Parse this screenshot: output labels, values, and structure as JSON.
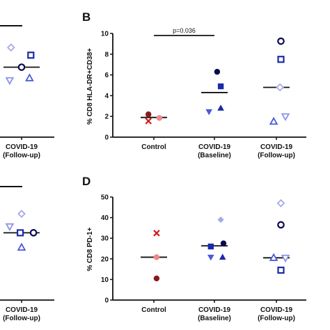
{
  "colors": {
    "dark_red": "#8b1a1a",
    "red": "#d01c1c",
    "pink": "#f08888",
    "navy": "#0a0a50",
    "blue": "#1a2aa8",
    "medium_blue": "#4a5ad8",
    "light_blue": "#8a94e6",
    "lavender": "#a6a9ea"
  },
  "chart_data": [
    {
      "panel": "left-top (partial)",
      "type": "scatter",
      "categories": [
        "COVID-19 (Follow-up)"
      ],
      "category_lines": [
        [
          "COVID-19",
          "(Follow-up)"
        ]
      ],
      "median_line": true,
      "points": [
        {
          "category": 0,
          "offset": -0.4,
          "y": 0.82,
          "marker": "diamond-open",
          "color": "lavender"
        },
        {
          "category": 0,
          "offset": 0.35,
          "y": 0.75,
          "marker": "square-open",
          "color": "blue"
        },
        {
          "category": 0,
          "offset": 0.0,
          "y": 0.64,
          "marker": "circle-open",
          "color": "navy"
        },
        {
          "category": 0,
          "offset": -0.45,
          "y": 0.52,
          "marker": "triangle-down-open",
          "color": "light_blue"
        },
        {
          "category": 0,
          "offset": 0.3,
          "y": 0.54,
          "marker": "triangle-up-open",
          "color": "medium_blue"
        }
      ]
    },
    {
      "panel": "B",
      "type": "scatter",
      "ylabel": "% CD8 HLA-DR+CD38+",
      "ylim": [
        0,
        10
      ],
      "yticks": [
        "0",
        "2",
        "4",
        "6",
        "8",
        "10"
      ],
      "categories": [
        "Control",
        "COVID-19 (Baseline)",
        "COVID-19 (Follow-up)"
      ],
      "category_lines": [
        [
          "Control"
        ],
        [
          "COVID-19",
          "(Baseline)"
        ],
        [
          "COVID-19",
          "(Follow-up)"
        ]
      ],
      "medians": [
        1.9,
        4.3,
        4.8
      ],
      "significance": {
        "from": 0,
        "to": 1,
        "label": "p=0.036",
        "y": 9.8
      },
      "points": [
        {
          "category": 0,
          "offset": -0.3,
          "y": 2.2,
          "marker": "circle-filled",
          "color": "dark_red"
        },
        {
          "category": 0,
          "offset": -0.3,
          "y": 1.55,
          "marker": "x",
          "color": "red"
        },
        {
          "category": 0,
          "offset": 0.3,
          "y": 1.85,
          "marker": "circle-filled",
          "color": "pink"
        },
        {
          "category": 1,
          "offset": 0.15,
          "y": 6.3,
          "marker": "circle-filled",
          "color": "navy"
        },
        {
          "category": 1,
          "offset": 0.35,
          "y": 4.9,
          "marker": "square-filled",
          "color": "blue"
        },
        {
          "category": 1,
          "offset": -0.3,
          "y": 2.45,
          "marker": "triangle-down-filled",
          "color": "medium_blue"
        },
        {
          "category": 1,
          "offset": 0.35,
          "y": 2.8,
          "marker": "triangle-up-filled",
          "color": "blue"
        },
        {
          "category": 2,
          "offset": 0.25,
          "y": 9.25,
          "marker": "circle-open",
          "color": "navy"
        },
        {
          "category": 2,
          "offset": 0.25,
          "y": 7.5,
          "marker": "square-open",
          "color": "blue"
        },
        {
          "category": 2,
          "offset": 0.2,
          "y": 4.8,
          "marker": "diamond-open",
          "color": "lavender"
        },
        {
          "category": 2,
          "offset": 0.5,
          "y": 2.0,
          "marker": "triangle-down-open",
          "color": "light_blue"
        },
        {
          "category": 2,
          "offset": -0.15,
          "y": 1.5,
          "marker": "triangle-up-open",
          "color": "medium_blue"
        }
      ]
    },
    {
      "panel": "left-bottom (partial)",
      "type": "scatter",
      "categories": [
        "COVID-19 (Follow-up)"
      ],
      "category_lines": [
        [
          "COVID-19",
          "(Follow-up)"
        ]
      ],
      "median_line": true,
      "points": [
        {
          "category": 0,
          "offset": 0.0,
          "y": 0.82,
          "marker": "diamond-open",
          "color": "lavender"
        },
        {
          "category": 0,
          "offset": -0.45,
          "y": 0.7,
          "marker": "triangle-down-open",
          "color": "light_blue"
        },
        {
          "category": 0,
          "offset": -0.05,
          "y": 0.64,
          "marker": "square-open",
          "color": "blue"
        },
        {
          "category": 0,
          "offset": 0.45,
          "y": 0.64,
          "marker": "circle-open",
          "color": "navy"
        },
        {
          "category": 0,
          "offset": 0.0,
          "y": 0.5,
          "marker": "triangle-up-open",
          "color": "medium_blue"
        }
      ]
    },
    {
      "panel": "D",
      "type": "scatter",
      "ylabel": "% CD8 PD-1+",
      "ylim": [
        0,
        50
      ],
      "yticks": [
        "0",
        "10",
        "20",
        "30",
        "40",
        "50"
      ],
      "categories": [
        "Control",
        "COVID-19 (Baseline)",
        "COVID-19 (Follow-up)"
      ],
      "category_lines": [
        [
          "Control"
        ],
        [
          "COVID-19",
          "(Baseline)"
        ],
        [
          "COVID-19",
          "(Follow-up)"
        ]
      ],
      "medians": [
        20.8,
        26.3,
        20.5
      ],
      "points": [
        {
          "category": 0,
          "offset": 0.15,
          "y": 32.5,
          "marker": "x",
          "color": "red"
        },
        {
          "category": 0,
          "offset": 0.15,
          "y": 20.8,
          "marker": "circle-filled",
          "color": "pink"
        },
        {
          "category": 0,
          "offset": 0.15,
          "y": 10.5,
          "marker": "circle-filled",
          "color": "dark_red"
        },
        {
          "category": 1,
          "offset": 0.35,
          "y": 39.0,
          "marker": "diamond-filled",
          "color": "lavender"
        },
        {
          "category": 1,
          "offset": 0.5,
          "y": 27.5,
          "marker": "circle-filled",
          "color": "navy"
        },
        {
          "category": 1,
          "offset": -0.2,
          "y": 26.0,
          "marker": "square-filled",
          "color": "blue"
        },
        {
          "category": 1,
          "offset": -0.2,
          "y": 20.8,
          "marker": "triangle-down-filled",
          "color": "medium_blue"
        },
        {
          "category": 1,
          "offset": 0.45,
          "y": 20.8,
          "marker": "triangle-up-filled",
          "color": "blue"
        },
        {
          "category": 2,
          "offset": 0.25,
          "y": 47.0,
          "marker": "diamond-open",
          "color": "lavender"
        },
        {
          "category": 2,
          "offset": 0.25,
          "y": 36.5,
          "marker": "circle-open",
          "color": "navy"
        },
        {
          "category": 2,
          "offset": -0.15,
          "y": 20.5,
          "marker": "triangle-up-open",
          "color": "medium_blue"
        },
        {
          "category": 2,
          "offset": 0.5,
          "y": 20.5,
          "marker": "triangle-down-open",
          "color": "light_blue"
        },
        {
          "category": 2,
          "offset": 0.25,
          "y": 14.5,
          "marker": "square-open",
          "color": "blue"
        }
      ]
    }
  ],
  "panel_labels": [
    "B",
    "D"
  ]
}
